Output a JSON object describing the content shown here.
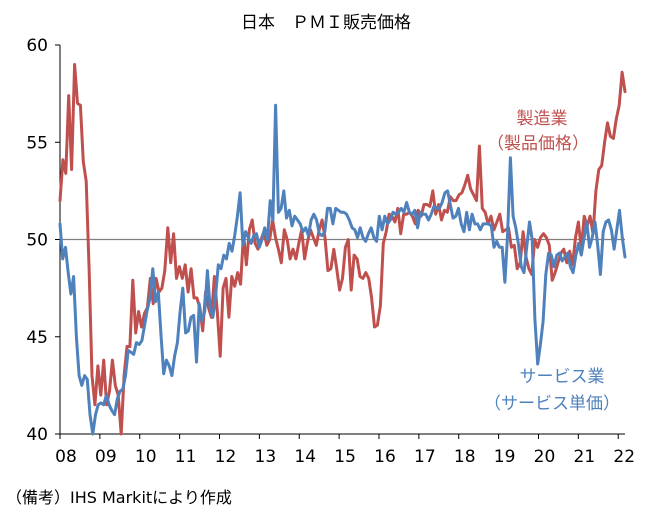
{
  "chart_data": {
    "type": "line",
    "title": "日本　ＰＭＩ販売価格",
    "xlabel": "",
    "ylabel": "",
    "ylim": [
      40,
      60
    ],
    "yticks": [
      "40",
      "45",
      "50",
      "55",
      "60"
    ],
    "x_range": [
      2008.0,
      2022.17
    ],
    "xtick_labels": [
      "08",
      "09",
      "10",
      "11",
      "12",
      "13",
      "14",
      "15",
      "16",
      "17",
      "18",
      "19",
      "20",
      "21",
      "22"
    ],
    "reference_line": 50,
    "grid": false,
    "series": [
      {
        "name": "製造業（製品価格）",
        "color": "#c0504d",
        "values": [
          52.0,
          54.1,
          53.4,
          57.4,
          53.6,
          59.0,
          57.0,
          56.9,
          54.0,
          53.0,
          48.5,
          43.0,
          41.5,
          43.5,
          42.0,
          43.8,
          41.5,
          42.2,
          43.8,
          42.5,
          42.0,
          40.0,
          43.0,
          44.5,
          44.5,
          47.9,
          45.2,
          46.3,
          45.5,
          46.2,
          46.5,
          48.0,
          46.7,
          48.0,
          47.3,
          47.5,
          48.4,
          50.6,
          48.8,
          50.3,
          48.0,
          48.6,
          48.0,
          48.7,
          47.3,
          48.5,
          47.0,
          47.0,
          46.5,
          45.3,
          47.3,
          46.5,
          46.0,
          48.1,
          46.3,
          44.0,
          47.5,
          48.0,
          46.0,
          48.1,
          47.6,
          48.3,
          47.7,
          50.3,
          48.7,
          50.5,
          51.0,
          49.8,
          49.5,
          50.0,
          50.4,
          49.7,
          50.0,
          51.0,
          50.1,
          49.5,
          48.8,
          50.5,
          50.0,
          49.0,
          49.5,
          49.0,
          49.8,
          50.5,
          49.0,
          49.9,
          50.5,
          50.1,
          49.7,
          50.5,
          51.0,
          50.1,
          48.4,
          48.5,
          49.5,
          48.5,
          47.4,
          48.0,
          49.6,
          50.0,
          47.4,
          49.2,
          49.0,
          48.1,
          48.0,
          48.3,
          48.0,
          47.0,
          45.5,
          45.6,
          46.6,
          49.8,
          50.4,
          51.3,
          51.2,
          50.9,
          51.6,
          50.3,
          51.3,
          51.3,
          51.4,
          51.2,
          50.8,
          51.5,
          51.2,
          51.8,
          51.8,
          51.7,
          52.5,
          51.3,
          51.8,
          51.0,
          51.5,
          51.4,
          52.2,
          52.0,
          52.0,
          52.3,
          52.4,
          52.8,
          53.3,
          52.6,
          52.3,
          52.0,
          54.8,
          51.6,
          51.4,
          50.8,
          51.2,
          50.5,
          50.9,
          51.3,
          50.4,
          50.5,
          50.6,
          49.6,
          49.7,
          48.5,
          48.8,
          50.4,
          49.1,
          48.5,
          48.2,
          50.0,
          49.6,
          50.1,
          50.3,
          50.1,
          49.7,
          47.9,
          48.3,
          48.8,
          49.3,
          49.5,
          48.8,
          49.4,
          48.7,
          50.1,
          50.9,
          49.5,
          51.2,
          50.7,
          51.2,
          50.3,
          52.5,
          53.6,
          53.8,
          55.0,
          56.0,
          55.3,
          55.2,
          56.2,
          56.9,
          58.6,
          57.6
        ]
      },
      {
        "name": "サービス業（サービス単価）",
        "color": "#4f81bd",
        "values": [
          50.8,
          49.0,
          49.6,
          48.3,
          47.2,
          48.1,
          45.0,
          43.0,
          42.5,
          43.0,
          42.8,
          41.0,
          40.0,
          41.0,
          41.5,
          41.6,
          41.5,
          42.0,
          41.5,
          41.2,
          41.0,
          41.8,
          42.2,
          42.3,
          43.0,
          44.3,
          44.2,
          44.1,
          44.7,
          44.6,
          44.8,
          45.6,
          46.4,
          47.0,
          48.5,
          46.8,
          47.3,
          45.1,
          43.1,
          43.8,
          43.5,
          43.0,
          44.0,
          44.7,
          46.3,
          47.5,
          45.2,
          45.3,
          46.0,
          46.1,
          43.7,
          46.7,
          45.8,
          46.3,
          48.4,
          46.5,
          46.0,
          47.1,
          48.7,
          48.5,
          49.2,
          49.0,
          49.8,
          49.4,
          50.2,
          51.2,
          52.4,
          49.7,
          50.4,
          50.1,
          49.8,
          50.2,
          50.3,
          49.6,
          50.0,
          50.6,
          50.0,
          52.0,
          51.0,
          56.9,
          51.4,
          51.6,
          52.5,
          51.1,
          51.5,
          50.7,
          51.2,
          51.0,
          50.8,
          50.4,
          50.6,
          50.2,
          51.0,
          51.3,
          51.0,
          50.3,
          50.2,
          50.4,
          51.6,
          51.6,
          50.8,
          51.6,
          51.5,
          51.4,
          51.4,
          51.3,
          51.0,
          50.6,
          50.5,
          50.1,
          50.6,
          50.1,
          49.9,
          50.3,
          50.6,
          50.1,
          49.9,
          51.2,
          50.5,
          51.2,
          50.8,
          51.0,
          51.4,
          51.3,
          51.4,
          51.6,
          51.4,
          51.9,
          51.4,
          51.3,
          51.5,
          50.6,
          51.4,
          51.3,
          51.3,
          51.0,
          51.3,
          51.7,
          51.6,
          51.6,
          51.9,
          52.4,
          52.5,
          51.8,
          51.1,
          51.2,
          51.6,
          50.8,
          50.4,
          51.4,
          50.5,
          51.3,
          50.8,
          50.8,
          50.5,
          50.8,
          50.8,
          50.8,
          50.7,
          49.6,
          49.9,
          49.6,
          49.6,
          47.8,
          50.3,
          54.2,
          51.2,
          50.6,
          49.7,
          48.6,
          48.3,
          49.6,
          50.9,
          50.0,
          45.9,
          43.6,
          44.6,
          45.8,
          48.2,
          49.3,
          49.2,
          48.6,
          49.2,
          49.3,
          48.9,
          49.1,
          49.3,
          48.6,
          48.3,
          49.2,
          49.8,
          49.2,
          50.1,
          50.9,
          49.6,
          50.1,
          50.9,
          49.7,
          48.2,
          50.4,
          50.9,
          51.0,
          50.5,
          49.5,
          50.5,
          51.5,
          50.1,
          49.1
        ]
      }
    ]
  },
  "labels": {
    "manufacturing_line1": "製造業",
    "manufacturing_line2": "（製品価格）",
    "services_line1": "サービス業",
    "services_line2": "（サービス単価）"
  },
  "source": "（備考）IHS Markitにより作成"
}
